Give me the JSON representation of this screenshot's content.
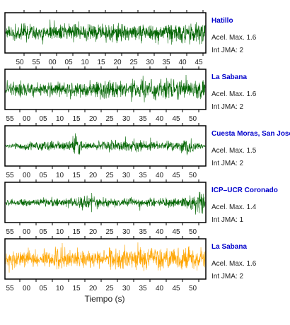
{
  "chart_data": {
    "type": "line",
    "xlabel": "Tiempo (s)",
    "grid": false,
    "panels": [
      {
        "station": "Hatillo",
        "accel_label": "Acel. Max.",
        "accel_value": "1.6",
        "jma_label": "Int JMA:",
        "jma_value": "2",
        "trace_color": "#006400",
        "tick_labels": [
          "50",
          "55",
          "00",
          "05",
          "10",
          "15",
          "20",
          "25",
          "30",
          "35",
          "40",
          "45"
        ],
        "amplitude_profile": [
          0.55,
          0.6,
          0.55,
          0.6,
          0.65,
          0.7,
          0.6,
          0.65,
          0.7,
          0.75,
          0.7,
          0.65,
          0.7,
          0.75,
          0.65,
          0.6,
          0.65,
          0.7,
          0.75,
          0.8,
          0.7,
          0.75,
          0.8,
          0.85
        ]
      },
      {
        "station": "La Sabana",
        "accel_label": "Acel. Max.",
        "accel_value": "1.6",
        "jma_label": "Int JMA:",
        "jma_value": "2",
        "trace_color": "#006400",
        "tick_labels": [
          "55",
          "00",
          "05",
          "10",
          "15",
          "20",
          "25",
          "30",
          "35",
          "40",
          "45",
          "50"
        ],
        "amplitude_profile": [
          0.5,
          0.55,
          0.6,
          0.55,
          0.5,
          0.55,
          0.6,
          0.65,
          0.6,
          0.55,
          0.6,
          0.7,
          0.65,
          0.6,
          0.65,
          0.7,
          0.85,
          0.75,
          0.7,
          0.8,
          0.7,
          0.65,
          0.7,
          0.75
        ]
      },
      {
        "station": "Cuesta Moras, San Jose",
        "accel_label": "Acel. Max.",
        "accel_value": "1.5",
        "jma_label": "Int JMA:",
        "jma_value": "2",
        "trace_color": "#006400",
        "tick_labels": [
          "55",
          "00",
          "05",
          "10",
          "15",
          "20",
          "25",
          "30",
          "35",
          "40",
          "45",
          "50"
        ],
        "amplitude_profile": [
          0.15,
          0.2,
          0.25,
          0.35,
          0.3,
          0.4,
          0.35,
          0.3,
          0.95,
          0.3,
          0.25,
          0.35,
          0.4,
          0.3,
          0.45,
          0.5,
          0.4,
          0.35,
          0.3,
          0.35,
          0.4,
          0.8,
          0.3,
          0.2
        ]
      },
      {
        "station": "ICP–UCR Coronado",
        "accel_label": "Acel. Max.",
        "accel_value": "1.4",
        "jma_label": "Int JMA:",
        "jma_value": "1",
        "trace_color": "#006400",
        "tick_labels": [
          "55",
          "00",
          "05",
          "10",
          "15",
          "20",
          "25",
          "30",
          "35",
          "40",
          "45",
          "50"
        ],
        "amplitude_profile": [
          0.2,
          0.25,
          0.3,
          0.25,
          0.3,
          0.35,
          0.3,
          0.35,
          0.3,
          0.5,
          0.7,
          0.35,
          0.3,
          0.3,
          0.35,
          0.3,
          0.3,
          0.35,
          0.3,
          0.4,
          0.35,
          0.45,
          0.7,
          1.0
        ]
      },
      {
        "station": "La Sabana",
        "accel_label": "Acel. Max.",
        "accel_value": "1.6",
        "jma_label": "Int JMA:",
        "jma_value": "2",
        "trace_color": "#ffa500",
        "tick_labels": [
          "55",
          "00",
          "05",
          "10",
          "15",
          "20",
          "25",
          "30",
          "35",
          "40",
          "45",
          "50"
        ],
        "amplitude_profile": [
          0.65,
          0.7,
          0.75,
          0.7,
          0.65,
          0.7,
          0.75,
          0.7,
          0.75,
          0.8,
          0.75,
          0.7,
          0.8,
          0.85,
          0.8,
          0.75,
          0.8,
          0.85,
          0.9,
          0.85,
          0.8,
          0.85,
          0.75,
          0.8
        ]
      }
    ]
  }
}
